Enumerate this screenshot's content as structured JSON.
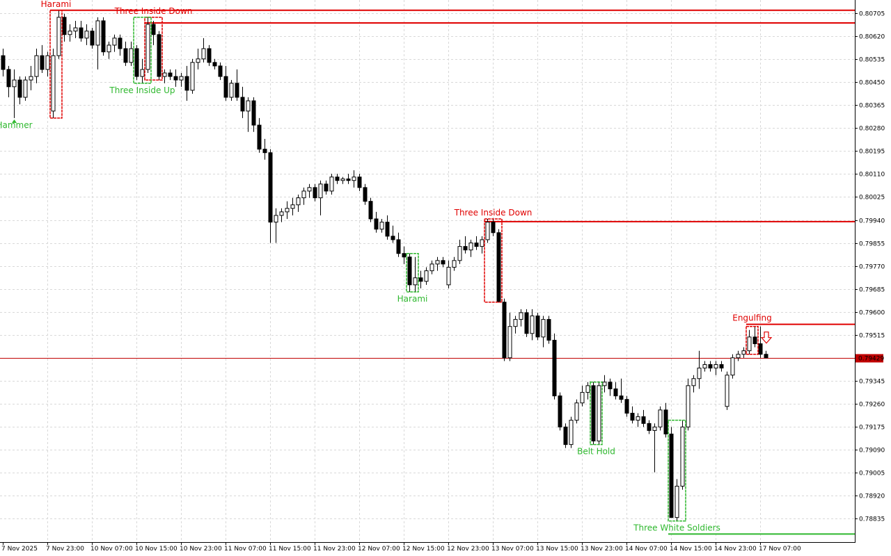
{
  "chart_data": {
    "type": "candlestick",
    "grid": true,
    "categories": [
      "7 Nov 2025",
      null,
      null,
      null,
      null,
      null,
      null,
      null,
      "7 Nov 23:00",
      null,
      null,
      null,
      null,
      null,
      null,
      null,
      "10 Nov 07:00",
      null,
      null,
      null,
      null,
      null,
      null,
      null,
      "10 Nov 15:00",
      null,
      null,
      null,
      null,
      null,
      null,
      null,
      "10 Nov 23:00",
      null,
      null,
      null,
      null,
      null,
      null,
      null,
      "11 Nov 07:00",
      null,
      null,
      null,
      null,
      null,
      null,
      null,
      "11 Nov 15:00",
      null,
      null,
      null,
      null,
      null,
      null,
      null,
      "11 Nov 23:00",
      null,
      null,
      null,
      null,
      null,
      null,
      null,
      "12 Nov 07:00",
      null,
      null,
      null,
      null,
      null,
      null,
      null,
      "12 Nov 15:00",
      null,
      null,
      null,
      null,
      null,
      null,
      null,
      "12 Nov 23:00",
      null,
      null,
      null,
      null,
      null,
      null,
      null,
      "13 Nov 07:00",
      null,
      null,
      null,
      null,
      null,
      null,
      null,
      "13 Nov 15:00",
      null,
      null,
      null,
      null,
      null,
      null,
      null,
      "13 Nov 23:00",
      null,
      null,
      null,
      null,
      null,
      null,
      null,
      "14 Nov 07:00",
      null,
      null,
      null,
      null,
      null,
      null,
      null,
      "14 Nov 15:00",
      null,
      null,
      null,
      null,
      null,
      null,
      null,
      "14 Nov 23:00",
      null,
      null,
      null,
      null,
      null,
      null,
      null,
      "17 Nov 07:00",
      null
    ],
    "ohlc": [
      [
        0.80548,
        0.80574,
        0.80471,
        0.80497
      ],
      [
        0.80497,
        0.8051,
        0.80394,
        0.80433
      ],
      [
        0.80433,
        0.80497,
        0.80317,
        0.80458
      ],
      [
        0.80458,
        0.80471,
        0.80368,
        0.80394
      ],
      [
        0.80394,
        0.80471,
        0.80381,
        0.80458
      ],
      [
        0.80458,
        0.8051,
        0.8042,
        0.80471
      ],
      [
        0.80471,
        0.80574,
        0.80446,
        0.80548
      ],
      [
        0.80548,
        0.80587,
        0.80484,
        0.80497
      ],
      [
        0.80497,
        0.80562,
        0.80471,
        0.80548
      ],
      [
        0.80343,
        0.80574,
        0.80317,
        0.80548
      ],
      [
        0.80548,
        0.80716,
        0.80536,
        0.8069
      ],
      [
        0.8069,
        0.80703,
        0.806,
        0.80626
      ],
      [
        0.80626,
        0.80664,
        0.806,
        0.80639
      ],
      [
        0.80639,
        0.80677,
        0.80613,
        0.80651
      ],
      [
        0.80651,
        0.80677,
        0.806,
        0.80613
      ],
      [
        0.80613,
        0.80664,
        0.80587,
        0.80639
      ],
      [
        0.80639,
        0.80651,
        0.80574,
        0.80587
      ],
      [
        0.80587,
        0.8069,
        0.80497,
        0.80677
      ],
      [
        0.80677,
        0.8069,
        0.80548,
        0.80562
      ],
      [
        0.80562,
        0.806,
        0.80536,
        0.80587
      ],
      [
        0.80587,
        0.80626,
        0.80562,
        0.80613
      ],
      [
        0.80613,
        0.80626,
        0.80548,
        0.80574
      ],
      [
        0.80574,
        0.806,
        0.8051,
        0.80523
      ],
      [
        0.80523,
        0.806,
        0.8051,
        0.80574
      ],
      [
        0.80574,
        0.80587,
        0.80458,
        0.80471
      ],
      [
        0.80471,
        0.80536,
        0.80446,
        0.80497
      ],
      [
        0.80497,
        0.8069,
        0.80484,
        0.80664
      ],
      [
        0.80664,
        0.80677,
        0.80587,
        0.80626
      ],
      [
        0.80626,
        0.80639,
        0.80458,
        0.80471
      ],
      [
        0.80471,
        0.80497,
        0.80446,
        0.80484
      ],
      [
        0.80484,
        0.80497,
        0.80458,
        0.80471
      ],
      [
        0.80471,
        0.80497,
        0.80433,
        0.80458
      ],
      [
        0.80458,
        0.80484,
        0.80433,
        0.80471
      ],
      [
        0.80471,
        0.8051,
        0.80381,
        0.8042
      ],
      [
        0.8042,
        0.80536,
        0.80407,
        0.80523
      ],
      [
        0.80523,
        0.80574,
        0.80497,
        0.80536
      ],
      [
        0.80536,
        0.80613,
        0.80523,
        0.80574
      ],
      [
        0.80574,
        0.80587,
        0.8051,
        0.80523
      ],
      [
        0.80523,
        0.80536,
        0.80497,
        0.8051
      ],
      [
        0.8051,
        0.80523,
        0.80458,
        0.80471
      ],
      [
        0.80471,
        0.8051,
        0.80381,
        0.80394
      ],
      [
        0.80394,
        0.80458,
        0.80381,
        0.80446
      ],
      [
        0.80446,
        0.80497,
        0.80381,
        0.80394
      ],
      [
        0.80394,
        0.80433,
        0.80317,
        0.80343
      ],
      [
        0.80343,
        0.80394,
        0.80266,
        0.80381
      ],
      [
        0.80381,
        0.80394,
        0.80266,
        0.80291
      ],
      [
        0.80291,
        0.80317,
        0.80189,
        0.80202
      ],
      [
        0.80202,
        0.8024,
        0.80163,
        0.80189
      ],
      [
        0.80189,
        0.80202,
        0.79855,
        0.79932
      ],
      [
        0.79932,
        0.79983,
        0.79855,
        0.79957
      ],
      [
        0.79957,
        0.79983,
        0.79932,
        0.7997
      ],
      [
        0.7997,
        0.80009,
        0.79944,
        0.79983
      ],
      [
        0.79983,
        0.80022,
        0.79957,
        0.79996
      ],
      [
        0.79996,
        0.80034,
        0.7997,
        0.80022
      ],
      [
        0.80022,
        0.8006,
        0.79996,
        0.80047
      ],
      [
        0.80047,
        0.80073,
        0.80022,
        0.8006
      ],
      [
        0.8006,
        0.80073,
        0.80009,
        0.80022
      ],
      [
        0.80022,
        0.80086,
        0.79957,
        0.80073
      ],
      [
        0.80073,
        0.80086,
        0.80034,
        0.80047
      ],
      [
        0.80047,
        0.80111,
        0.80034,
        0.80099
      ],
      [
        0.80099,
        0.80111,
        0.80073,
        0.80086
      ],
      [
        0.80086,
        0.80099,
        0.80073,
        0.80092
      ],
      [
        0.80092,
        0.80111,
        0.80073,
        0.80086
      ],
      [
        0.80086,
        0.80124,
        0.8006,
        0.80099
      ],
      [
        0.80099,
        0.80111,
        0.80047,
        0.8006
      ],
      [
        0.8006,
        0.80073,
        0.79996,
        0.80009
      ],
      [
        0.80009,
        0.80022,
        0.79932,
        0.79944
      ],
      [
        0.79944,
        0.7997,
        0.79893,
        0.79906
      ],
      [
        0.79906,
        0.79944,
        0.79893,
        0.79932
      ],
      [
        0.79932,
        0.79957,
        0.79867,
        0.7988
      ],
      [
        0.7988,
        0.79919,
        0.79855,
        0.79867
      ],
      [
        0.79867,
        0.79893,
        0.79803,
        0.79816
      ],
      [
        0.79816,
        0.79842,
        0.79777,
        0.79803
      ],
      [
        0.79803,
        0.79816,
        0.79674,
        0.797
      ],
      [
        0.797,
        0.79803,
        0.79674,
        0.79726
      ],
      [
        0.79726,
        0.79752,
        0.79687,
        0.79713
      ],
      [
        0.79713,
        0.79765,
        0.797,
        0.79752
      ],
      [
        0.79752,
        0.7979,
        0.79739,
        0.79777
      ],
      [
        0.79777,
        0.79803,
        0.79752,
        0.7979
      ],
      [
        0.7979,
        0.79803,
        0.79765,
        0.79777
      ],
      [
        0.797,
        0.7979,
        0.79687,
        0.79765
      ],
      [
        0.79765,
        0.79803,
        0.79752,
        0.7979
      ],
      [
        0.7979,
        0.79867,
        0.79777,
        0.79842
      ],
      [
        0.79842,
        0.7988,
        0.79816,
        0.79829
      ],
      [
        0.79829,
        0.79867,
        0.79803,
        0.79855
      ],
      [
        0.79855,
        0.7988,
        0.79829,
        0.79842
      ],
      [
        0.79842,
        0.7988,
        0.79816,
        0.79867
      ],
      [
        0.79867,
        0.79944,
        0.79855,
        0.79932
      ],
      [
        0.79932,
        0.79944,
        0.7988,
        0.79893
      ],
      [
        0.79893,
        0.79906,
        0.79636,
        0.79636
      ],
      [
        0.79636,
        0.79649,
        0.79418,
        0.7943
      ],
      [
        0.7943,
        0.79597,
        0.79418,
        0.79546
      ],
      [
        0.79546,
        0.79585,
        0.7952,
        0.79572
      ],
      [
        0.79572,
        0.7961,
        0.79546,
        0.79597
      ],
      [
        0.79597,
        0.7961,
        0.79507,
        0.7952
      ],
      [
        0.7952,
        0.7961,
        0.79495,
        0.79585
      ],
      [
        0.79585,
        0.79597,
        0.79495,
        0.79507
      ],
      [
        0.79507,
        0.79585,
        0.79469,
        0.79572
      ],
      [
        0.79572,
        0.79585,
        0.79482,
        0.79495
      ],
      [
        0.79495,
        0.7952,
        0.79276,
        0.79289
      ],
      [
        0.79289,
        0.79302,
        0.79161,
        0.79174
      ],
      [
        0.79174,
        0.79187,
        0.79096,
        0.79109
      ],
      [
        0.79109,
        0.79212,
        0.79096,
        0.79199
      ],
      [
        0.79199,
        0.79276,
        0.79187,
        0.79263
      ],
      [
        0.79263,
        0.79327,
        0.7925,
        0.79302
      ],
      [
        0.79302,
        0.7934,
        0.79276,
        0.79327
      ],
      [
        0.79327,
        0.7934,
        0.79109,
        0.79122
      ],
      [
        0.79122,
        0.7934,
        0.79109,
        0.79327
      ],
      [
        0.79327,
        0.79366,
        0.79302,
        0.7934
      ],
      [
        0.7934,
        0.79353,
        0.79289,
        0.79315
      ],
      [
        0.79315,
        0.7934,
        0.79276,
        0.79289
      ],
      [
        0.79289,
        0.79353,
        0.79263,
        0.79276
      ],
      [
        0.79276,
        0.79289,
        0.79212,
        0.79225
      ],
      [
        0.79225,
        0.7925,
        0.79187,
        0.79199
      ],
      [
        0.79199,
        0.79225,
        0.79174,
        0.79212
      ],
      [
        0.79212,
        0.79237,
        0.79174,
        0.79187
      ],
      [
        0.79187,
        0.79199,
        0.79148,
        0.79161
      ],
      [
        0.79161,
        0.79187,
        0.79006,
        0.79174
      ],
      [
        0.79174,
        0.7925,
        0.79161,
        0.79237
      ],
      [
        0.79237,
        0.79263,
        0.79135,
        0.79148
      ],
      [
        0.79148,
        0.79174,
        0.78839,
        0.78839
      ],
      [
        0.78839,
        0.78981,
        0.78826,
        0.78955
      ],
      [
        0.78955,
        0.79199,
        0.78942,
        0.79174
      ],
      [
        0.79174,
        0.79353,
        0.79161,
        0.79327
      ],
      [
        0.79327,
        0.79366,
        0.79302,
        0.79353
      ],
      [
        0.79353,
        0.79456,
        0.79315,
        0.79392
      ],
      [
        0.79392,
        0.79418,
        0.79379,
        0.79405
      ],
      [
        0.79405,
        0.79418,
        0.79379,
        0.79392
      ],
      [
        0.79392,
        0.79418,
        0.79366,
        0.79405
      ],
      [
        0.79405,
        0.79418,
        0.79379,
        0.79392
      ],
      [
        0.7925,
        0.79379,
        0.79237,
        0.79366
      ],
      [
        0.79366,
        0.79443,
        0.79353,
        0.7943
      ],
      [
        0.7943,
        0.79456,
        0.79418,
        0.79443
      ],
      [
        0.79443,
        0.79469,
        0.7943,
        0.79456
      ],
      [
        0.79456,
        0.79533,
        0.79443,
        0.79507
      ],
      [
        0.79507,
        0.79546,
        0.79469,
        0.79482
      ],
      [
        0.79482,
        0.79546,
        0.7943,
        0.79443
      ],
      [
        0.79443,
        0.79456,
        0.7943,
        0.7943
      ]
    ],
    "ylim": [
      0.78748,
      0.80754
    ],
    "yticks": [
      0.80705,
      {
        "value": 0.8062,
        "label": "0.80620"
      },
      0.80535,
      {
        "value": 0.8045,
        "label": "0.80450"
      },
      0.80365,
      {
        "value": 0.8028,
        "label": "0.80280"
      },
      0.80195,
      {
        "value": 0.8011,
        "label": "0.80110"
      },
      0.80025,
      {
        "value": 0.7994,
        "label": "0.79940"
      },
      0.79855,
      {
        "value": 0.7977,
        "label": "0.79770"
      },
      0.79685,
      {
        "value": 0.796,
        "label": "0.79600"
      },
      0.79515,
      0.79345,
      {
        "value": 0.7926,
        "label": "0.79260"
      },
      0.79175,
      {
        "value": 0.7909,
        "label": "0.79090"
      },
      0.79005,
      {
        "value": 0.7892,
        "label": "0.78920"
      },
      0.78835
    ],
    "last_price": 0.79429,
    "last_price_color": "#c00000",
    "patterns": [
      {
        "label": "Hammer",
        "color": "#2eb82e",
        "candles": [
          2,
          2
        ],
        "arrow": "up"
      },
      {
        "label": "Harami",
        "color": "#e00000",
        "candles": [
          9,
          10
        ],
        "level": 0.80716
      },
      {
        "label": "Three Inside Down",
        "color": "#e00000",
        "candles": [
          26,
          28
        ],
        "level": 0.80669
      },
      {
        "label": "Three Inside Up",
        "color": "#2eb82e",
        "candles": [
          24,
          26
        ]
      },
      {
        "label": "Harami",
        "color": "#2eb82e",
        "candles": [
          73,
          74
        ]
      },
      {
        "label": "Three Inside Down",
        "color": "#e00000",
        "candles": [
          87,
          89
        ],
        "level": 0.79934
      },
      {
        "label": "Belt Hold",
        "color": "#2eb82e",
        "candles": [
          106,
          107
        ]
      },
      {
        "label": "Three White Soldiers",
        "color": "#2eb82e",
        "candles": [
          120,
          122
        ],
        "level": 0.78778
      },
      {
        "label": "Engulfing",
        "color": "#e00000",
        "candles": [
          134,
          135
        ],
        "level": 0.79554,
        "arrow": "down"
      }
    ]
  }
}
